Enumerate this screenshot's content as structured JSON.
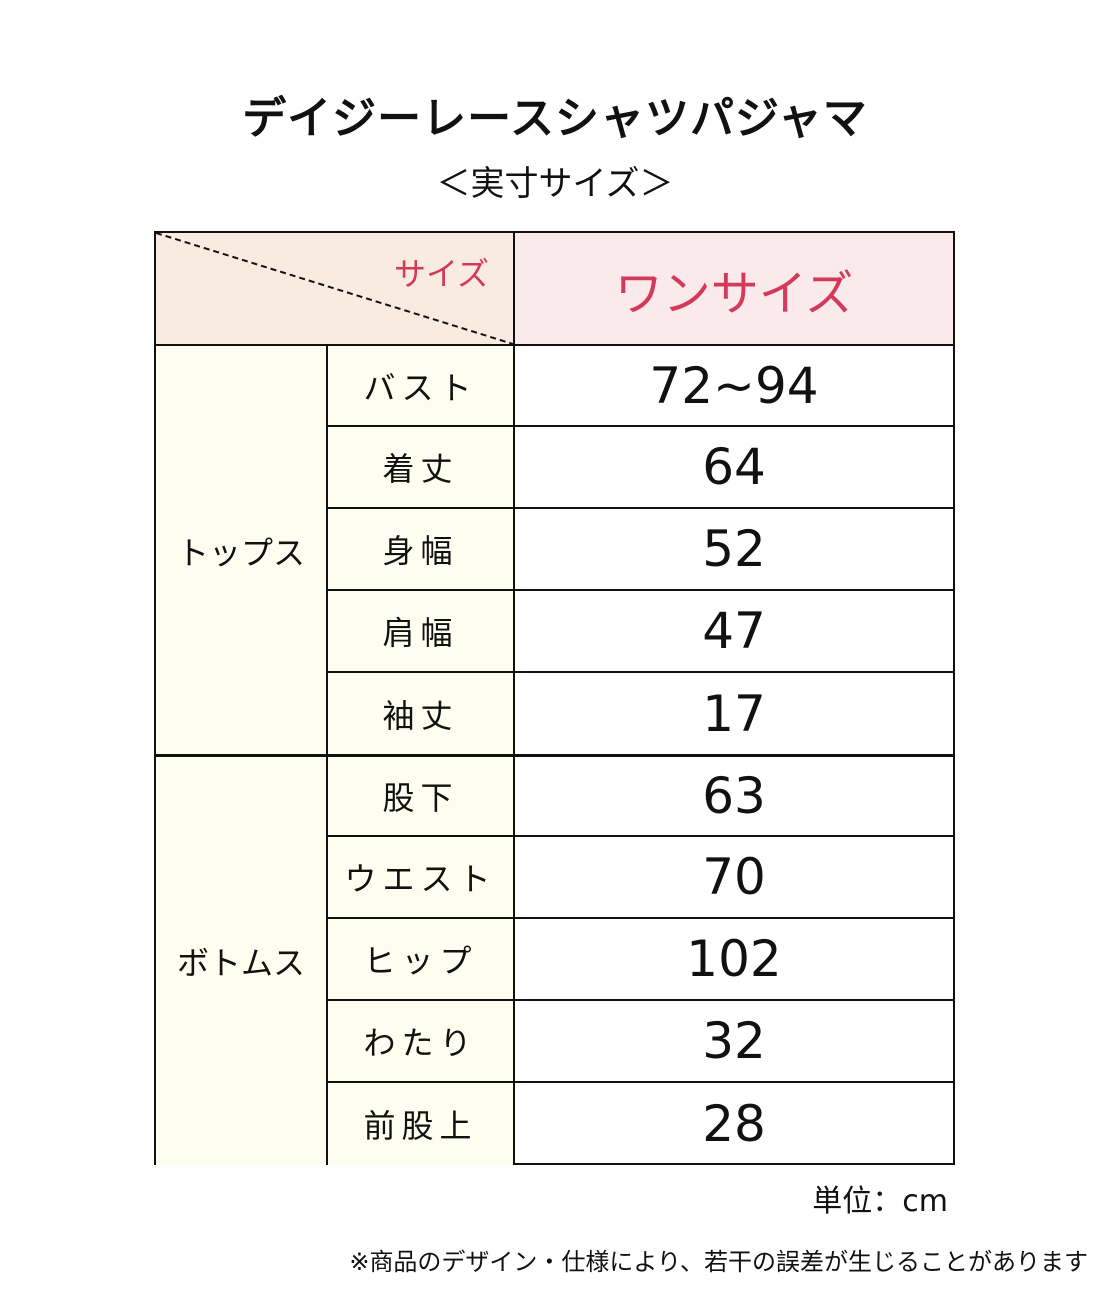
{
  "title": "デイジーレースシャツパジャマ",
  "subtitle": "＜実寸サイズ＞",
  "table": {
    "corner_label": "サイズ",
    "size_header": "ワンサイズ",
    "groups": [
      {
        "label": "トップス",
        "rows": [
          {
            "item": "バスト",
            "value": "72~94"
          },
          {
            "item": "着丈",
            "value": "64"
          },
          {
            "item": "身幅",
            "value": "52"
          },
          {
            "item": "肩幅",
            "value": "47"
          },
          {
            "item": "袖丈",
            "value": "17"
          }
        ]
      },
      {
        "label": "ボトムス",
        "rows": [
          {
            "item": "股下",
            "value": "63"
          },
          {
            "item": "ウエスト",
            "value": "70"
          },
          {
            "item": "ヒップ",
            "value": "102"
          },
          {
            "item": "わたり",
            "value": "32"
          },
          {
            "item": "前股上",
            "value": "28"
          }
        ]
      }
    ]
  },
  "unit": "単位：cm",
  "note": "※商品のデザイン・仕様により、若干の誤差が生じることがあります",
  "colors": {
    "accent": "#d33a5a",
    "corner_bg": "#f9ebdf",
    "header_bg": "#fbeaec",
    "label_bg": "#fdfdf0"
  }
}
